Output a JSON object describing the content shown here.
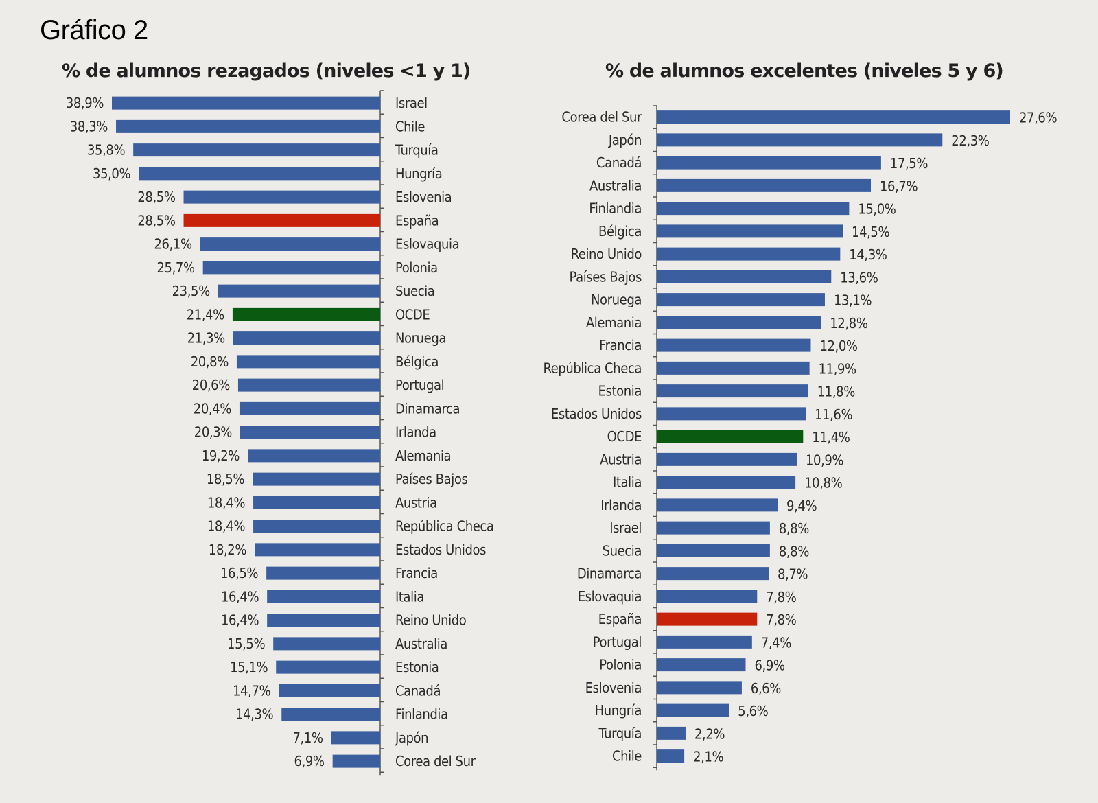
{
  "title": "Gráfico 2",
  "colors": {
    "default": "#3b5f9e",
    "spain": "#c8230a",
    "oecd": "#0a5a12",
    "axis": "#555555"
  },
  "chart_data": [
    {
      "type": "bar",
      "orientation": "horizontal",
      "direction": "leftward",
      "title": "% de alumnos rezagados (niveles <1 y 1)",
      "xlabel": "",
      "ylabel": "",
      "xlim": [
        0,
        40
      ],
      "grid": false,
      "legend": "none",
      "categories": [
        "Israel",
        "Chile",
        "Turquía",
        "Hungría",
        "Eslovenia",
        "España",
        "Eslovaquia",
        "Polonia",
        "Suecia",
        "OCDE",
        "Noruega",
        "Bélgica",
        "Portugal",
        "Dinamarca",
        "Irlanda",
        "Alemania",
        "Países Bajos",
        "Austria",
        "República Checa",
        "Estados Unidos",
        "Francia",
        "Italia",
        "Reino Unido",
        "Australia",
        "Estonia",
        "Canadá",
        "Finlandia",
        "Japón",
        "Corea del Sur"
      ],
      "values": [
        38.9,
        38.3,
        35.8,
        35.0,
        28.5,
        28.5,
        26.1,
        25.7,
        23.5,
        21.4,
        21.3,
        20.8,
        20.6,
        20.4,
        20.3,
        19.2,
        18.5,
        18.4,
        18.4,
        18.2,
        16.5,
        16.4,
        16.4,
        15.5,
        15.1,
        14.7,
        14.3,
        7.1,
        6.9
      ],
      "data_labels": [
        "38,9%",
        "38,3%",
        "35,8%",
        "35,0%",
        "28,5%",
        "28,5%",
        "26,1%",
        "25,7%",
        "23,5%",
        "21,4%",
        "21,3%",
        "20,8%",
        "20,6%",
        "20,4%",
        "20,3%",
        "19,2%",
        "18,5%",
        "18,4%",
        "18,4%",
        "18,2%",
        "16,5%",
        "16,4%",
        "16,4%",
        "15,5%",
        "15,1%",
        "14,7%",
        "14,3%",
        "7,1%",
        "6,9%"
      ],
      "highlights": {
        "España": "spain",
        "OCDE": "oecd"
      }
    },
    {
      "type": "bar",
      "orientation": "horizontal",
      "direction": "rightward",
      "title": "% de alumnos excelentes (niveles 5 y 6)",
      "xlabel": "",
      "ylabel": "",
      "xlim": [
        0,
        30
      ],
      "grid": false,
      "legend": "none",
      "categories": [
        "Corea del Sur",
        "Japón",
        "Canadá",
        "Australia",
        "Finlandia",
        "Bélgica",
        "Reino Unido",
        "Países Bajos",
        "Noruega",
        "Alemania",
        "Francia",
        "República Checa",
        "Estonia",
        "Estados Unidos",
        "OCDE",
        "Austria",
        "Italia",
        "Irlanda",
        "Israel",
        "Suecia",
        "Dinamarca",
        "Eslovaquia",
        "España",
        "Portugal",
        "Polonia",
        "Eslovenia",
        "Hungría",
        "Turquía",
        "Chile"
      ],
      "values": [
        27.6,
        22.3,
        17.5,
        16.7,
        15.0,
        14.5,
        14.3,
        13.6,
        13.1,
        12.8,
        12.0,
        11.9,
        11.8,
        11.6,
        11.4,
        10.9,
        10.8,
        9.4,
        8.8,
        8.8,
        8.7,
        7.8,
        7.8,
        7.4,
        6.9,
        6.6,
        5.6,
        2.2,
        2.1
      ],
      "data_labels": [
        "27,6%",
        "22,3%",
        "17,5%",
        "16,7%",
        "15,0%",
        "14,5%",
        "14,3%",
        "13,6%",
        "13,1%",
        "12,8%",
        "12,0%",
        "11,9%",
        "11,8%",
        "11,6%",
        "11,4%",
        "10,9%",
        "10,8%",
        "9,4%",
        "8,8%",
        "8,8%",
        "8,7%",
        "7,8%",
        "7,8%",
        "7,4%",
        "6,9%",
        "6,6%",
        "5,6%",
        "2,2%",
        "2,1%"
      ],
      "highlights": {
        "España": "spain",
        "OCDE": "oecd"
      }
    }
  ]
}
